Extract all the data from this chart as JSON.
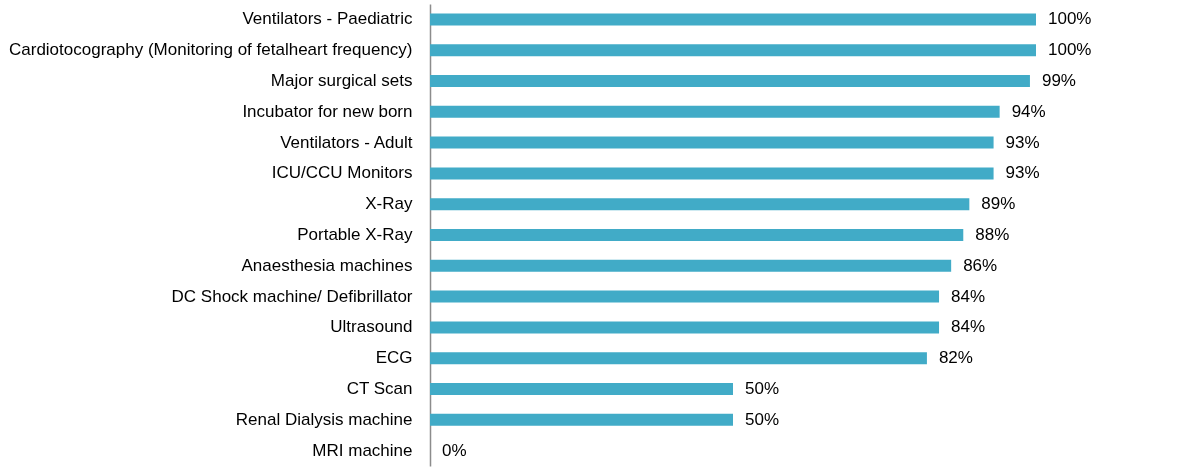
{
  "chart_data": {
    "type": "bar",
    "orientation": "horizontal",
    "categories": [
      "Ventilators - Paediatric",
      "Cardiotocography (Monitoring of fetalheart frequency)",
      "Major surgical sets",
      "Incubator for new born",
      "Ventilators - Adult",
      "ICU/CCU Monitors",
      "X-Ray",
      "Portable X-Ray",
      "Anaesthesia machines",
      "DC Shock machine/ Defibrillator",
      "Ultrasound",
      "ECG",
      "CT Scan",
      "Renal Dialysis machine",
      "MRI machine"
    ],
    "values": [
      100,
      100,
      99,
      94,
      93,
      93,
      89,
      88,
      86,
      84,
      84,
      82,
      50,
      50,
      0
    ],
    "value_labels": [
      "100%",
      "100%",
      "99%",
      "94%",
      "93%",
      "93%",
      "89%",
      "88%",
      "86%",
      "84%",
      "84%",
      "82%",
      "50%",
      "50%",
      "0%"
    ],
    "color": "#41abc7"
  }
}
